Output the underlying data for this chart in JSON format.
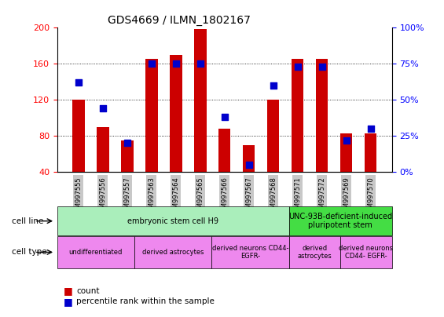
{
  "title": "GDS4669 / ILMN_1802167",
  "samples": [
    "GSM997555",
    "GSM997556",
    "GSM997557",
    "GSM997563",
    "GSM997564",
    "GSM997565",
    "GSM997566",
    "GSM997567",
    "GSM997568",
    "GSM997571",
    "GSM997572",
    "GSM997569",
    "GSM997570"
  ],
  "count_values": [
    120,
    90,
    75,
    165,
    170,
    198,
    88,
    70,
    120,
    165,
    165,
    83,
    83
  ],
  "percentile_values": [
    62,
    44,
    20,
    75,
    75,
    75,
    38,
    5,
    60,
    73,
    73,
    22,
    30
  ],
  "ylim_left": [
    40,
    200
  ],
  "ylim_right": [
    0,
    100
  ],
  "yticks_left": [
    40,
    80,
    120,
    160,
    200
  ],
  "yticks_right": [
    0,
    25,
    50,
    75,
    100
  ],
  "bar_color": "#cc0000",
  "dot_color": "#0000cc",
  "cell_line_groups": [
    {
      "label": "embryonic stem cell H9",
      "start": 0,
      "end": 9,
      "color": "#aaeebb"
    },
    {
      "label": "UNC-93B-deficient-induced\npluripotent stem",
      "start": 9,
      "end": 13,
      "color": "#44dd44"
    }
  ],
  "cell_type_groups": [
    {
      "label": "undifferentiated",
      "start": 0,
      "end": 3,
      "color": "#ee88ee"
    },
    {
      "label": "derived astrocytes",
      "start": 3,
      "end": 6,
      "color": "#ee88ee"
    },
    {
      "label": "derived neurons CD44-\nEGFR-",
      "start": 6,
      "end": 9,
      "color": "#ee88ee"
    },
    {
      "label": "derived\nastrocytes",
      "start": 9,
      "end": 11,
      "color": "#ee88ee"
    },
    {
      "label": "derived neurons\nCD44- EGFR-",
      "start": 11,
      "end": 13,
      "color": "#ee88ee"
    }
  ],
  "tick_bg_color": "#c8c8c8",
  "bar_width": 0.5,
  "dot_size": 30
}
